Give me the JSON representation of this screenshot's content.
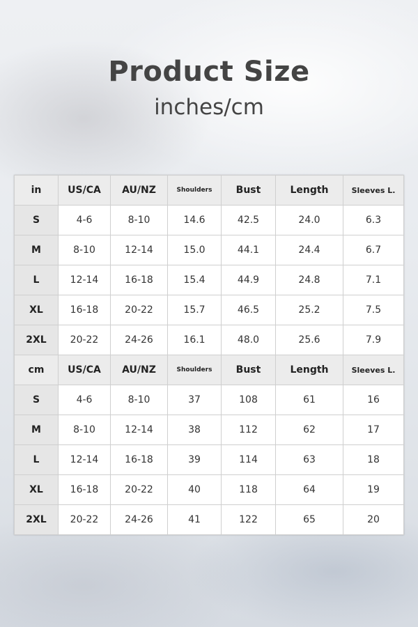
{
  "title": "Product Size",
  "subtitle": "inches/cm",
  "tables": [
    {
      "headers": [
        "in",
        "US/CA",
        "AU/NZ",
        "Shoulders",
        "Bust",
        "Length",
        "Sleeves L."
      ],
      "rows": [
        [
          "S",
          "4-6",
          "8-10",
          "14.6",
          "42.5",
          "24.0",
          "6.3"
        ],
        [
          "M",
          "8-10",
          "12-14",
          "15.0",
          "44.1",
          "24.4",
          "6.7"
        ],
        [
          "L",
          "12-14",
          "16-18",
          "15.4",
          "44.9",
          "24.8",
          "7.1"
        ],
        [
          "XL",
          "16-18",
          "20-22",
          "15.7",
          "46.5",
          "25.2",
          "7.5"
        ],
        [
          "2XL",
          "20-22",
          "24-26",
          "16.1",
          "48.0",
          "25.6",
          "7.9"
        ]
      ]
    },
    {
      "headers": [
        "cm",
        "US/CA",
        "AU/NZ",
        "Shoulders",
        "Bust",
        "Length",
        "Sleeves L."
      ],
      "rows": [
        [
          "S",
          "4-6",
          "8-10",
          "37",
          "108",
          "61",
          "16"
        ],
        [
          "M",
          "8-10",
          "12-14",
          "38",
          "112",
          "62",
          "17"
        ],
        [
          "L",
          "12-14",
          "16-18",
          "39",
          "114",
          "63",
          "18"
        ],
        [
          "XL",
          "16-18",
          "20-22",
          "40",
          "118",
          "64",
          "19"
        ],
        [
          "2XL",
          "20-22",
          "24-26",
          "41",
          "122",
          "65",
          "20"
        ]
      ]
    }
  ]
}
